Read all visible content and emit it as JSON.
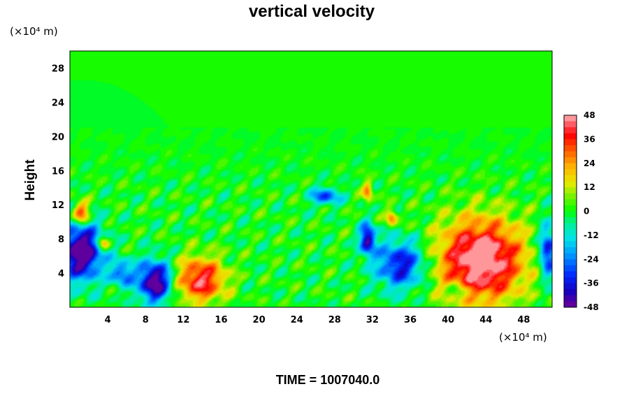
{
  "chart_data": {
    "type": "heatmap",
    "title": "vertical velocity",
    "ylabel": "Height",
    "y_unit_label": "(×10⁴ m)",
    "x_unit_label": "(×10⁴ m)",
    "xlim": [
      0,
      51
    ],
    "ylim": [
      0,
      30
    ],
    "x_ticks": [
      4,
      8,
      12,
      16,
      20,
      24,
      28,
      32,
      36,
      40,
      44,
      48
    ],
    "y_ticks": [
      4,
      8,
      12,
      16,
      20,
      24,
      28
    ],
    "colorbar": {
      "range": [
        -48,
        48
      ],
      "ticks": [
        48,
        36,
        24,
        12,
        0,
        -12,
        -24,
        -36,
        -48
      ],
      "levels": 32
    },
    "features": [
      {
        "x": 43.5,
        "y": 5.5,
        "rx": 4.5,
        "ry": 4.8,
        "value": 55
      },
      {
        "x": 13.8,
        "y": 3.2,
        "rx": 2.6,
        "ry": 2.6,
        "value": 42
      },
      {
        "x": 1.2,
        "y": 11.0,
        "rx": 0.9,
        "ry": 1.3,
        "value": 38
      },
      {
        "x": 3.5,
        "y": 7.5,
        "rx": 0.7,
        "ry": 0.8,
        "value": 30
      },
      {
        "x": 31.5,
        "y": 13.5,
        "rx": 0.5,
        "ry": 1.2,
        "value": 28
      },
      {
        "x": 34.0,
        "y": 10.5,
        "rx": 0.6,
        "ry": 0.9,
        "value": 30
      },
      {
        "x": 1.2,
        "y": 6.5,
        "rx": 2.2,
        "ry": 3.3,
        "value": -55
      },
      {
        "x": 9.0,
        "y": 3.0,
        "rx": 1.8,
        "ry": 2.4,
        "value": -52
      },
      {
        "x": 31.5,
        "y": 8.0,
        "rx": 0.8,
        "ry": 1.8,
        "value": -45
      },
      {
        "x": 35.0,
        "y": 5.0,
        "rx": 2.6,
        "ry": 2.8,
        "value": -38
      },
      {
        "x": 50.5,
        "y": 6.5,
        "rx": 0.9,
        "ry": 3.0,
        "value": -40
      },
      {
        "x": 27.0,
        "y": 13.0,
        "rx": 1.5,
        "ry": 1.0,
        "value": -30
      },
      {
        "x": 5.5,
        "y": 4.0,
        "rx": 1.2,
        "ry": 1.5,
        "value": -28
      },
      {
        "x": 41.0,
        "y": 2.0,
        "rx": 1.2,
        "ry": 1.0,
        "value": -15
      }
    ],
    "time_label": "TIME = 1007040.0"
  }
}
